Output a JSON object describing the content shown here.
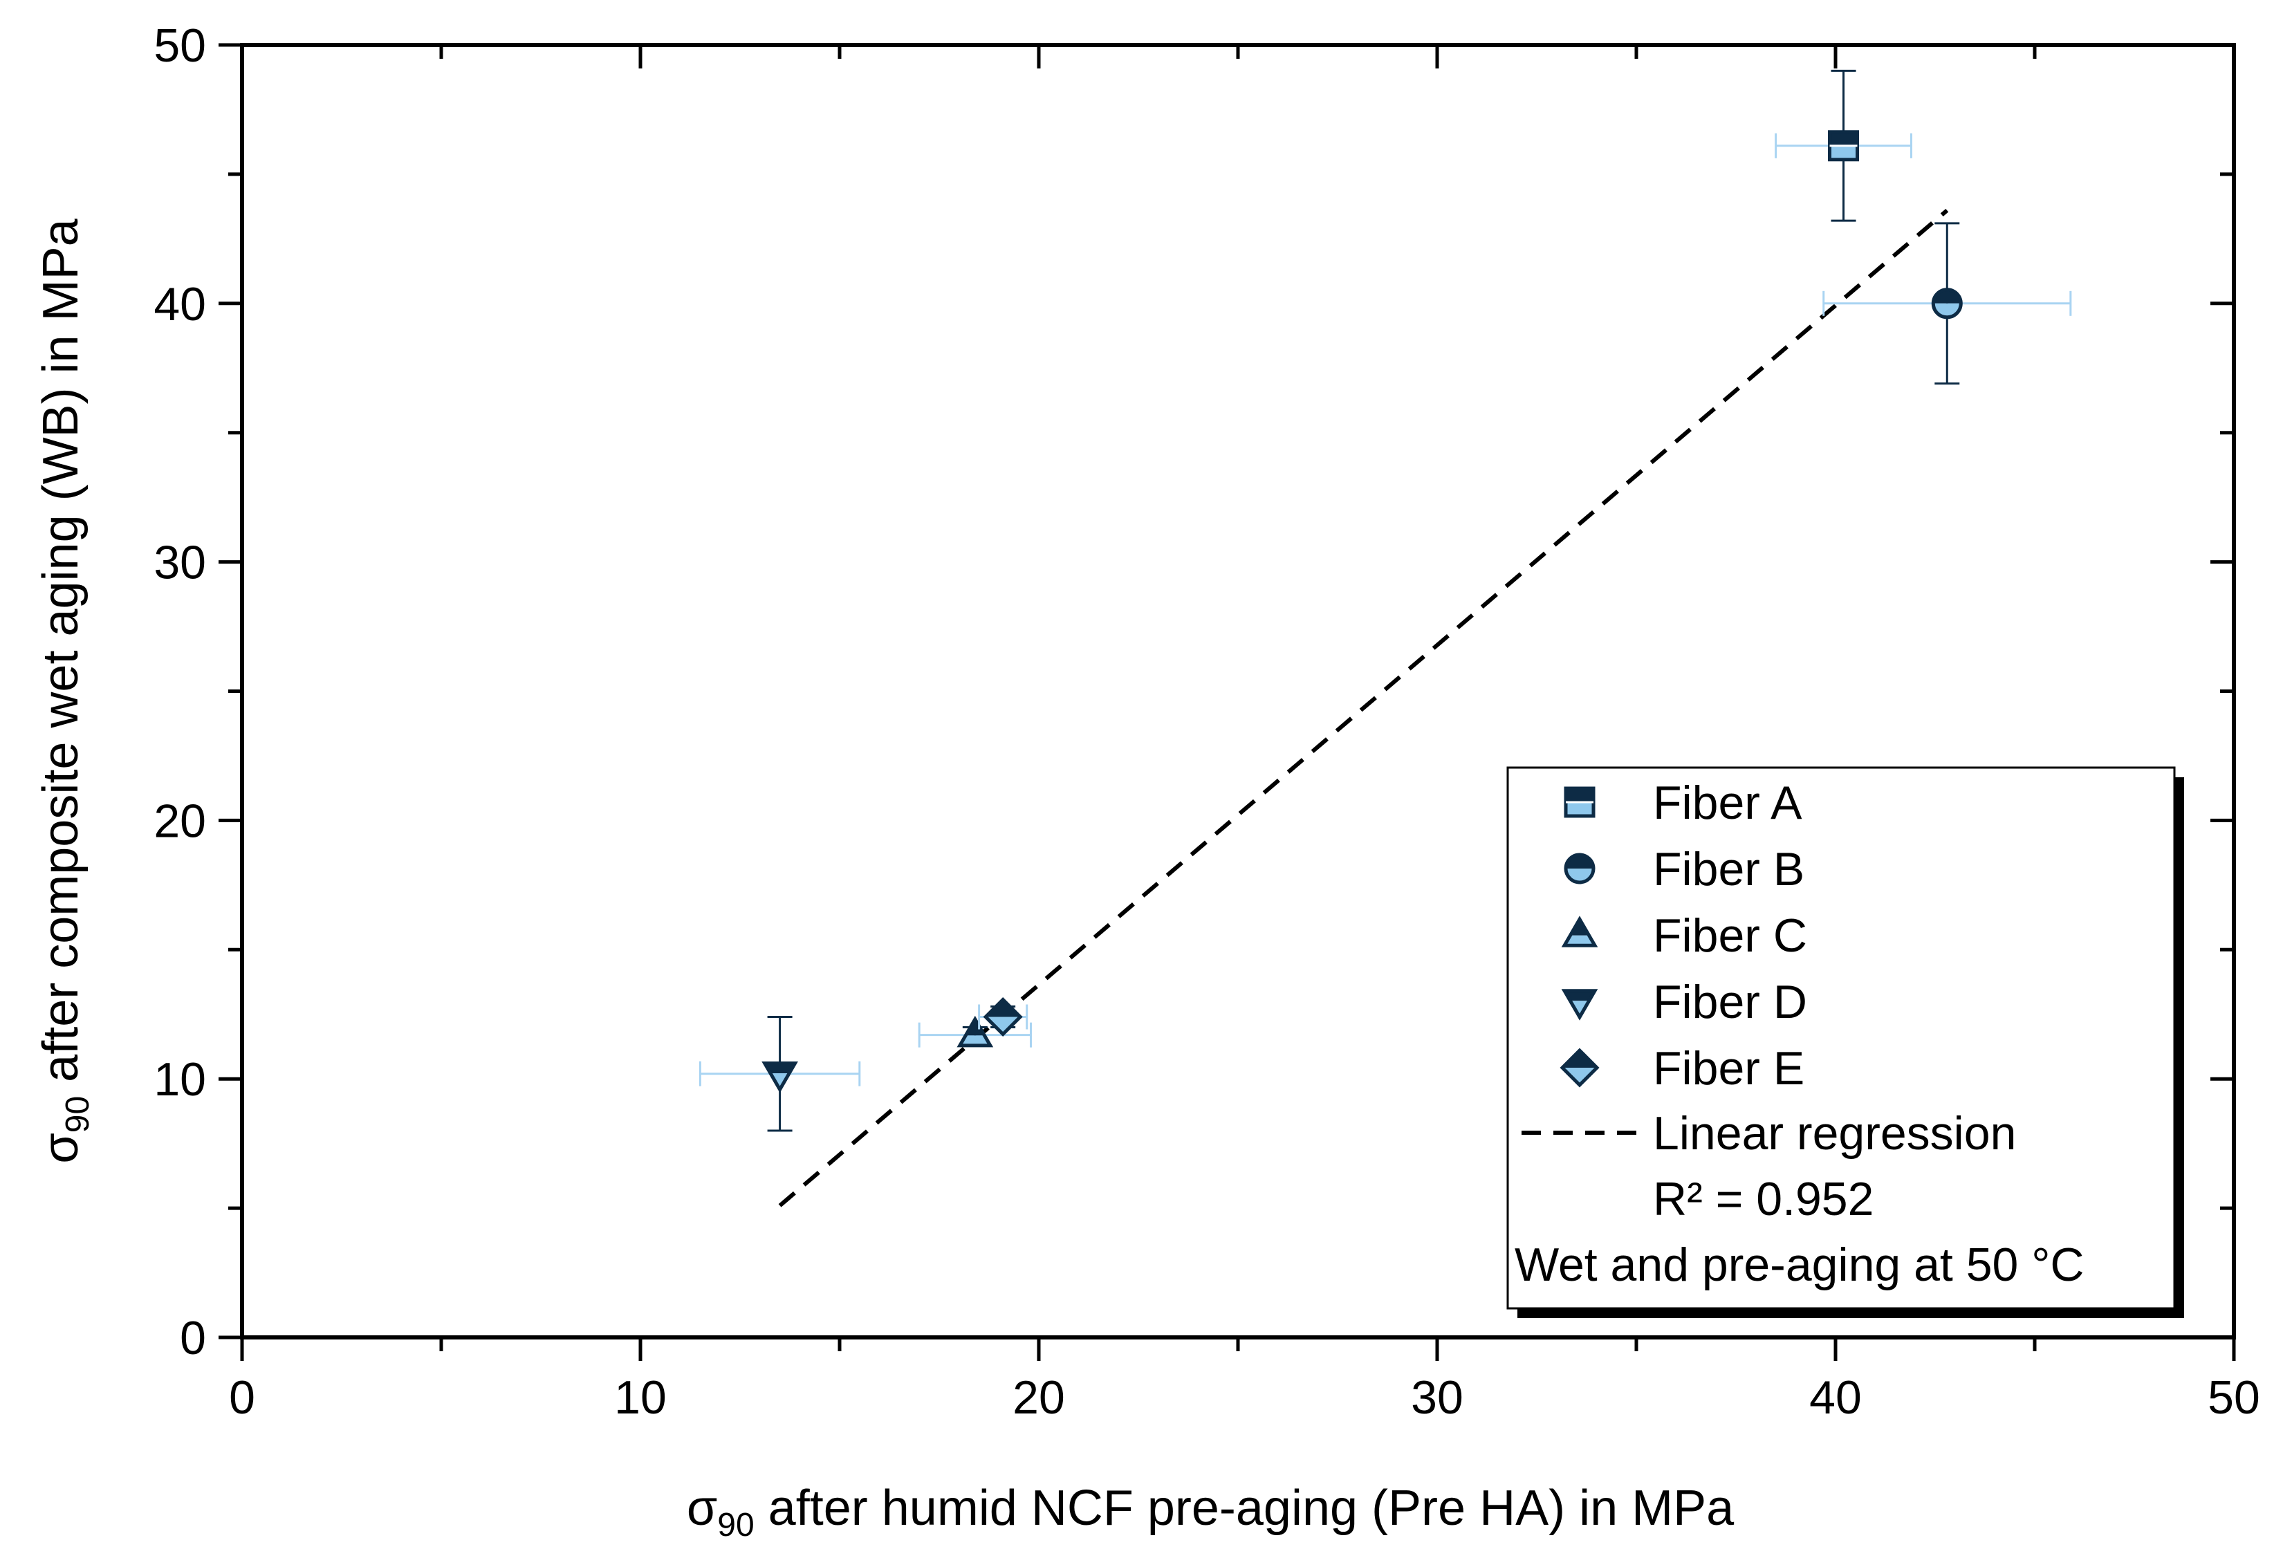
{
  "chart_data": {
    "type": "scatter",
    "title": "",
    "xlabel": {
      "symbol": "σ",
      "subscript": "90",
      "text": " after humid NCF pre-aging (Pre HA) in MPa"
    },
    "ylabel": {
      "symbol": "σ",
      "subscript": "90",
      "text": " after composite wet aging (WB) in MPa"
    },
    "xlim": [
      0,
      50
    ],
    "ylim": [
      0,
      50
    ],
    "xticks": [
      0,
      10,
      20,
      30,
      40,
      50
    ],
    "yticks": [
      0,
      10,
      20,
      30,
      40,
      50
    ],
    "xtick_labels": [
      "0",
      "10",
      "20",
      "30",
      "40",
      "50"
    ],
    "ytick_labels": [
      "0",
      "10",
      "20",
      "30",
      "40",
      "50"
    ],
    "minor_ticks": 5,
    "grid": false,
    "colors": {
      "dark": "#0d2b45",
      "light": "#8fc8ec",
      "errorbar_x": "#a9d4f2",
      "regression": "#000000"
    },
    "series": [
      {
        "name": "Fiber A",
        "marker": "square",
        "x": 40.2,
        "y": 46.1,
        "xerr": 1.7,
        "yerr": 2.9
      },
      {
        "name": "Fiber B",
        "marker": "circle",
        "x": 42.8,
        "y": 40.0,
        "xerr": 3.1,
        "yerr": 3.1
      },
      {
        "name": "Fiber C",
        "marker": "triangle-up",
        "x": 18.4,
        "y": 11.7,
        "xerr": 1.4,
        "yerr": 0.3
      },
      {
        "name": "Fiber D",
        "marker": "triangle-down",
        "x": 13.5,
        "y": 10.2,
        "xerr": 2.0,
        "yerr": 2.2
      },
      {
        "name": "Fiber E",
        "marker": "diamond",
        "x": 19.1,
        "y": 12.4,
        "xerr": 0.6,
        "yerr": 0.4
      }
    ],
    "regression": {
      "name": "Linear regression",
      "r2_label": "R² = 0.952",
      "x": [
        13.5,
        42.8
      ],
      "y": [
        5.1,
        43.6
      ]
    },
    "legend": {
      "position": "bottom-right",
      "note": "Wet and pre-aging at 50 °C"
    }
  }
}
